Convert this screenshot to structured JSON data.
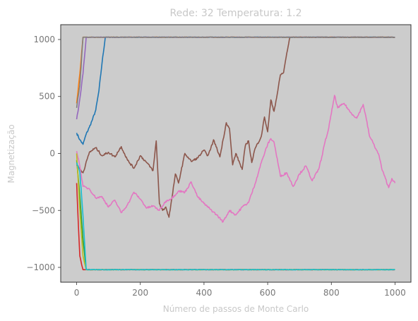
{
  "chart_data": {
    "type": "line",
    "title": "Rede: 32 Temperatura: 1.2",
    "xlabel": "Número de passos de Monte Carlo",
    "ylabel": "Magnetização",
    "xlim": [
      -50,
      1050
    ],
    "ylim": [
      -1130,
      1130
    ],
    "xticks": [
      0,
      200,
      400,
      600,
      800,
      1000
    ],
    "xtick_labels": [
      "0",
      "200",
      "400",
      "600",
      "800",
      "1000"
    ],
    "yticks": [
      -1000,
      -500,
      0,
      500,
      1000
    ],
    "ytick_labels": [
      "−1000",
      "−500",
      "0",
      "500",
      "1000"
    ],
    "grid": false,
    "plot_background": "#cccccc",
    "series": [
      {
        "color": "#1f77b4",
        "points": [
          [
            0,
            180
          ],
          [
            10,
            120
          ],
          [
            20,
            80
          ],
          [
            30,
            170
          ],
          [
            40,
            230
          ],
          [
            50,
            300
          ],
          [
            60,
            380
          ],
          [
            70,
            550
          ],
          [
            80,
            800
          ],
          [
            90,
            1020
          ],
          [
            1000,
            1020
          ]
        ]
      },
      {
        "color": "#ff7f0e",
        "points": [
          [
            0,
            440
          ],
          [
            10,
            700
          ],
          [
            20,
            1020
          ],
          [
            1000,
            1020
          ]
        ]
      },
      {
        "color": "#2ca02c",
        "points": [
          [
            0,
            -60
          ],
          [
            10,
            -380
          ],
          [
            20,
            -760
          ],
          [
            30,
            -1020
          ],
          [
            1000,
            -1020
          ]
        ]
      },
      {
        "color": "#d62728",
        "points": [
          [
            0,
            -260
          ],
          [
            5,
            -600
          ],
          [
            10,
            -900
          ],
          [
            20,
            -1020
          ],
          [
            1000,
            -1020
          ]
        ]
      },
      {
        "color": "#9467bd",
        "points": [
          [
            0,
            300
          ],
          [
            10,
            480
          ],
          [
            20,
            700
          ],
          [
            30,
            1020
          ],
          [
            1000,
            1020
          ]
        ]
      },
      {
        "color": "#8c564b",
        "points": [
          [
            0,
            -100
          ],
          [
            20,
            -170
          ],
          [
            40,
            10
          ],
          [
            60,
            50
          ],
          [
            80,
            -20
          ],
          [
            100,
            10
          ],
          [
            120,
            -30
          ],
          [
            140,
            60
          ],
          [
            160,
            -60
          ],
          [
            180,
            -130
          ],
          [
            200,
            -20
          ],
          [
            220,
            -80
          ],
          [
            240,
            -150
          ],
          [
            250,
            110
          ],
          [
            260,
            -440
          ],
          [
            270,
            -500
          ],
          [
            280,
            -470
          ],
          [
            290,
            -560
          ],
          [
            300,
            -380
          ],
          [
            310,
            -180
          ],
          [
            320,
            -260
          ],
          [
            340,
            0
          ],
          [
            360,
            -70
          ],
          [
            380,
            -40
          ],
          [
            400,
            30
          ],
          [
            410,
            -20
          ],
          [
            420,
            30
          ],
          [
            430,
            120
          ],
          [
            450,
            -30
          ],
          [
            470,
            270
          ],
          [
            480,
            220
          ],
          [
            490,
            -100
          ],
          [
            500,
            0
          ],
          [
            520,
            -140
          ],
          [
            530,
            70
          ],
          [
            540,
            110
          ],
          [
            550,
            -80
          ],
          [
            560,
            40
          ],
          [
            580,
            150
          ],
          [
            590,
            320
          ],
          [
            600,
            190
          ],
          [
            610,
            470
          ],
          [
            620,
            370
          ],
          [
            630,
            520
          ],
          [
            640,
            690
          ],
          [
            650,
            710
          ],
          [
            660,
            880
          ],
          [
            670,
            1020
          ],
          [
            1000,
            1020
          ]
        ]
      },
      {
        "color": "#e377c2",
        "points": [
          [
            0,
            20
          ],
          [
            10,
            -110
          ],
          [
            20,
            -290
          ],
          [
            40,
            -310
          ],
          [
            60,
            -390
          ],
          [
            80,
            -380
          ],
          [
            100,
            -470
          ],
          [
            120,
            -410
          ],
          [
            140,
            -520
          ],
          [
            160,
            -450
          ],
          [
            180,
            -340
          ],
          [
            200,
            -400
          ],
          [
            220,
            -480
          ],
          [
            240,
            -460
          ],
          [
            260,
            -500
          ],
          [
            280,
            -420
          ],
          [
            300,
            -390
          ],
          [
            320,
            -330
          ],
          [
            340,
            -340
          ],
          [
            360,
            -250
          ],
          [
            380,
            -380
          ],
          [
            400,
            -440
          ],
          [
            420,
            -490
          ],
          [
            440,
            -540
          ],
          [
            460,
            -600
          ],
          [
            480,
            -500
          ],
          [
            500,
            -540
          ],
          [
            520,
            -470
          ],
          [
            540,
            -430
          ],
          [
            560,
            -270
          ],
          [
            580,
            -80
          ],
          [
            600,
            80
          ],
          [
            610,
            130
          ],
          [
            620,
            100
          ],
          [
            640,
            -200
          ],
          [
            660,
            -170
          ],
          [
            680,
            -290
          ],
          [
            700,
            -180
          ],
          [
            720,
            -110
          ],
          [
            740,
            -240
          ],
          [
            760,
            -140
          ],
          [
            770,
            -30
          ],
          [
            780,
            100
          ],
          [
            790,
            200
          ],
          [
            800,
            350
          ],
          [
            810,
            510
          ],
          [
            820,
            400
          ],
          [
            840,
            440
          ],
          [
            860,
            360
          ],
          [
            880,
            310
          ],
          [
            900,
            430
          ],
          [
            910,
            300
          ],
          [
            920,
            150
          ],
          [
            930,
            100
          ],
          [
            950,
            -20
          ],
          [
            960,
            -150
          ],
          [
            970,
            -220
          ],
          [
            980,
            -300
          ],
          [
            990,
            -220
          ],
          [
            1000,
            -260
          ]
        ]
      },
      {
        "color": "#7f7f7f",
        "points": [
          [
            0,
            400
          ],
          [
            10,
            600
          ],
          [
            20,
            1020
          ],
          [
            1000,
            1020
          ]
        ]
      },
      {
        "color": "#bcbd22",
        "points": [
          [
            0,
            0
          ],
          [
            10,
            -500
          ],
          [
            20,
            -900
          ],
          [
            30,
            -1020
          ],
          [
            1000,
            -1020
          ]
        ]
      },
      {
        "color": "#17becf",
        "points": [
          [
            0,
            -80
          ],
          [
            10,
            -160
          ],
          [
            20,
            -550
          ],
          [
            30,
            -1020
          ],
          [
            1000,
            -1020
          ]
        ]
      }
    ]
  }
}
